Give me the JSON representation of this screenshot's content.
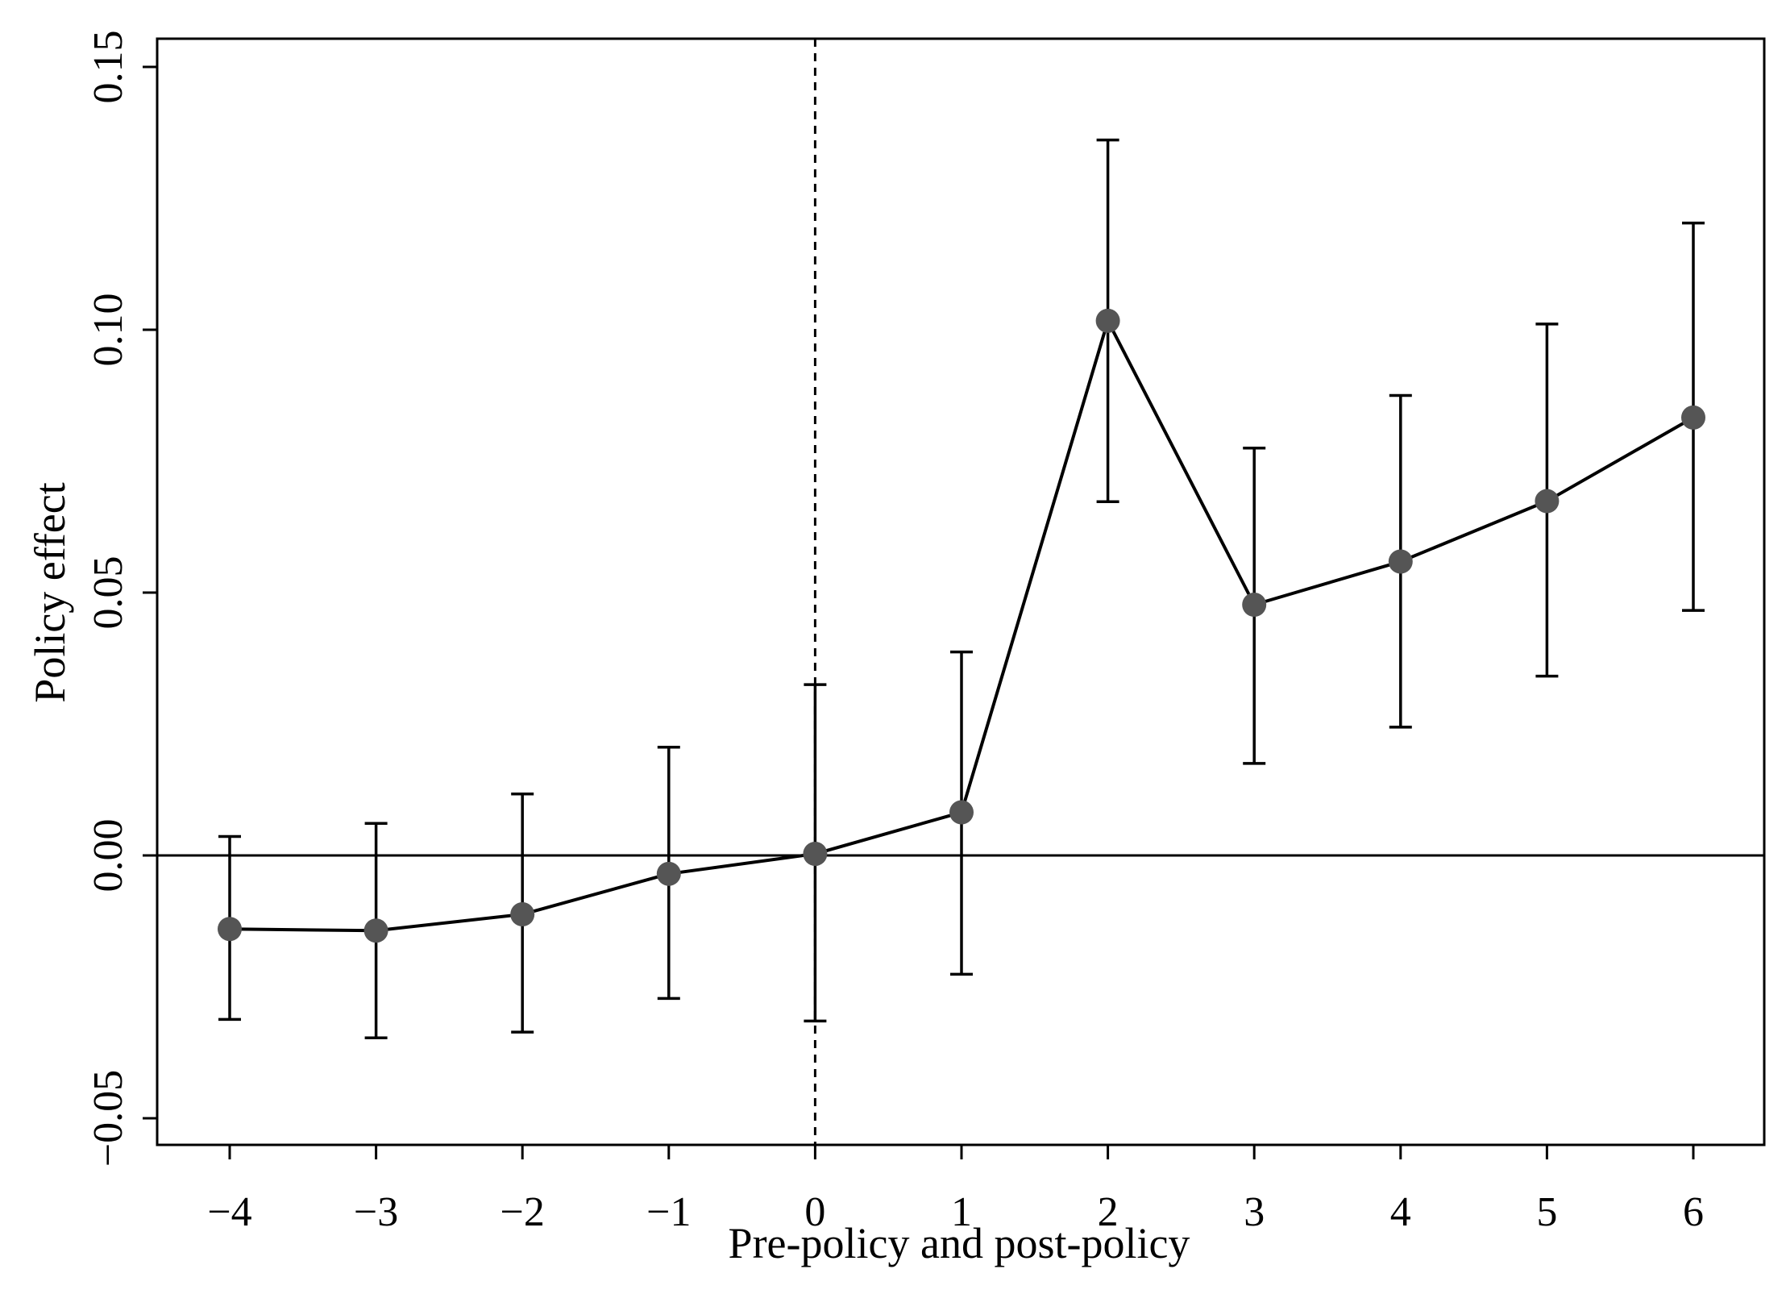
{
  "chart_data": {
    "type": "line",
    "title": "",
    "xlabel": "Pre-policy and post-policy",
    "ylabel": "Policy effect",
    "x": [
      -4,
      -3,
      -2,
      -1,
      0,
      1,
      2,
      3,
      4,
      5,
      6
    ],
    "x_tick_labels": [
      "−4",
      "−3",
      "−2",
      "−1",
      "0",
      "1",
      "2",
      "3",
      "4",
      "5",
      "6"
    ],
    "y_ticks": [
      -0.05,
      0,
      0.05,
      0.1,
      0.15
    ],
    "y_tick_labels": [
      "−0.05",
      "0.00",
      "0.05",
      "0.10",
      "0.15"
    ],
    "xlim": [
      -4.5,
      6.5
    ],
    "ylim": [
      -0.055,
      0.155
    ],
    "series": [
      {
        "name": "Policy effect",
        "values": [
          -0.014,
          -0.0143,
          -0.0112,
          -0.0035,
          0.0003,
          0.0082,
          0.1017,
          0.0477,
          0.0559,
          0.0674,
          0.0833
        ],
        "ci_lower": [
          -0.0312,
          -0.0347,
          -0.0336,
          -0.0272,
          -0.0315,
          -0.0226,
          0.0673,
          0.0175,
          0.0244,
          0.0341,
          0.0466
        ],
        "ci_upper": [
          0.0036,
          0.0061,
          0.0117,
          0.0206,
          0.0325,
          0.0387,
          0.1361,
          0.0775,
          0.0875,
          0.1011,
          0.1203
        ]
      }
    ],
    "reference_lines": {
      "horizontal_y": 0,
      "vertical_x": 0
    },
    "grid": false,
    "legend": "none",
    "colors": {
      "line": "#000000",
      "marker": "#555555",
      "frame": "#000000"
    }
  }
}
